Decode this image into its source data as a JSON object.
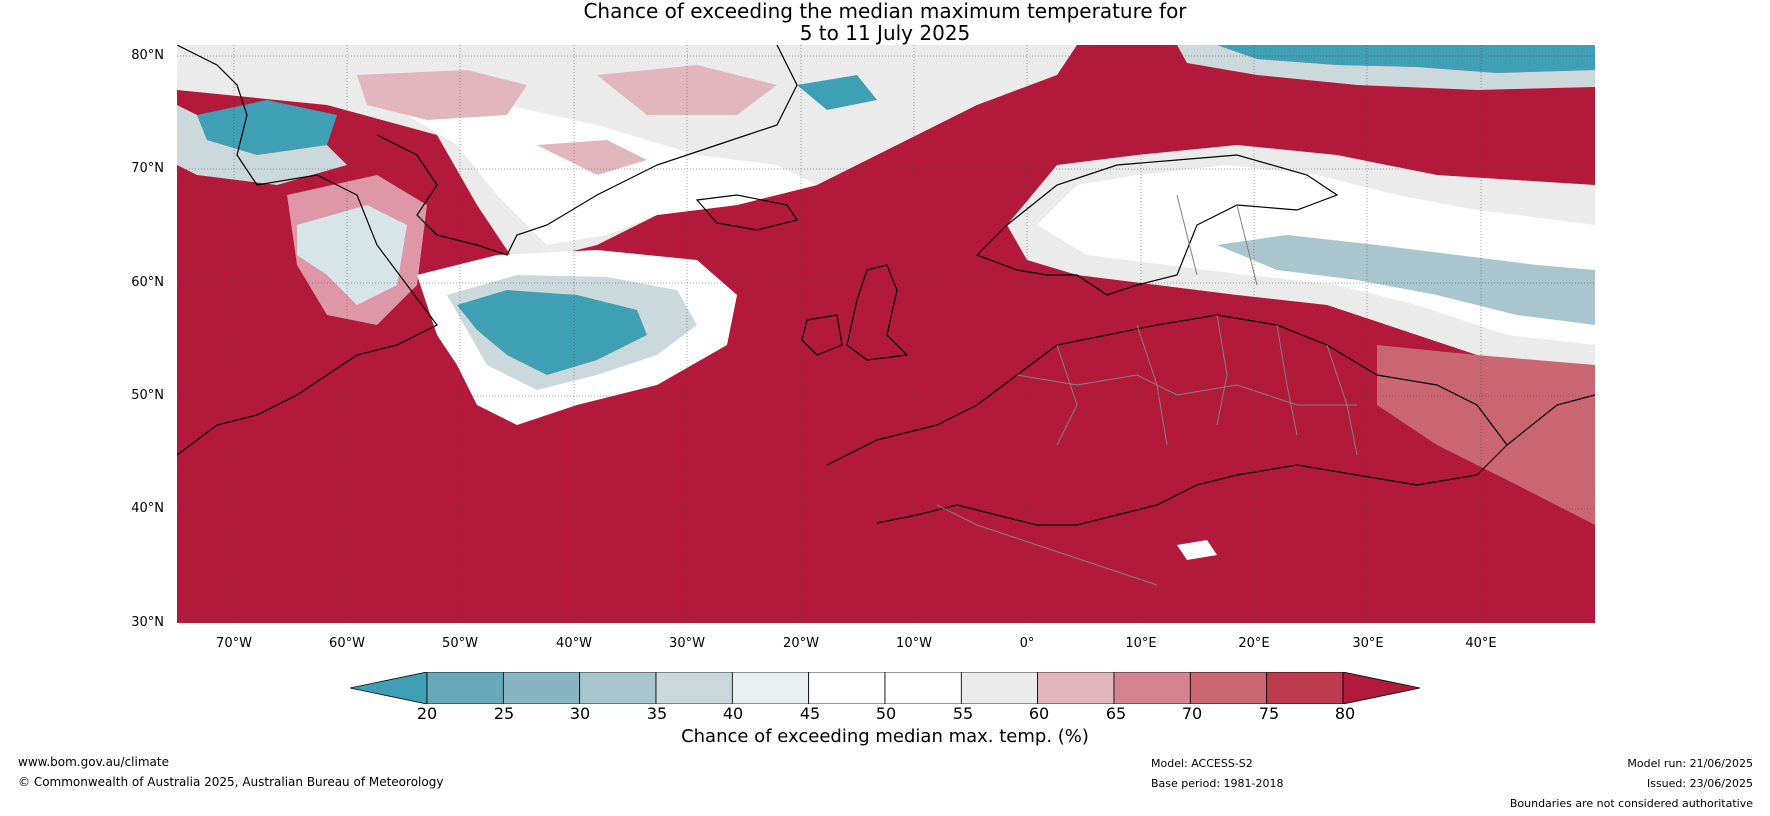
{
  "title": {
    "line1": "Chance of exceeding the median maximum temperature for",
    "line2": "5 to 11 July 2025"
  },
  "map": {
    "lat_labels": [
      "80°N",
      "70°N",
      "60°N",
      "50°N",
      "40°N",
      "30°N"
    ],
    "lat_values": [
      80,
      70,
      60,
      50,
      40,
      30
    ],
    "lon_labels": [
      "70°W",
      "60°W",
      "50°W",
      "40°W",
      "30°W",
      "20°W",
      "10°W",
      "0°",
      "10°E",
      "20°E",
      "30°E",
      "40°E"
    ],
    "lon_values": [
      -70,
      -60,
      -50,
      -40,
      -30,
      -20,
      -10,
      0,
      10,
      20,
      30,
      40
    ],
    "extent": {
      "lon": [
        -75,
        50
      ],
      "lat": [
        30,
        81
      ]
    },
    "ocean_color": "#b3193a",
    "coast_color": "#000000",
    "border_color": "#808080"
  },
  "colorbar": {
    "ticks": [
      "20",
      "25",
      "30",
      "35",
      "40",
      "45",
      "50",
      "55",
      "60",
      "65",
      "70",
      "75",
      "80"
    ],
    "tick_values": [
      20,
      25,
      30,
      35,
      40,
      45,
      50,
      55,
      60,
      65,
      70,
      75,
      80
    ],
    "colors": [
      "#3f9fb5",
      "#68a9b9",
      "#87b6c2",
      "#a9c5cd",
      "#cbd9dc",
      "#e8f0f2",
      "#ffffff",
      "#ffffff",
      "#ecebec",
      "#e1b7bd",
      "#d4838f",
      "#c96672",
      "#be3a4e",
      "#b3193a"
    ],
    "label": "Chance of exceeding median max. temp. (%)"
  },
  "footer": {
    "website": "www.bom.gov.au/climate",
    "copyright": "© Commonwealth of Australia 2025, Australian Bureau of Meteorology",
    "model": "Model: ACCESS-S2",
    "base_period": "Base period: 1981-2018",
    "model_run": "Model run: 21/06/2025",
    "issued": "Issued: 23/06/2025",
    "boundaries": "Boundaries are not considered authoritative"
  }
}
